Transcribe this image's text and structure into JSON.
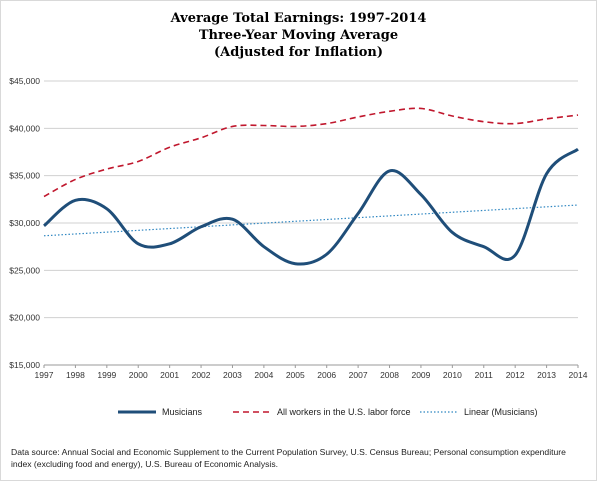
{
  "chart_data": {
    "type": "line",
    "title_lines": [
      "Average Total Earnings: 1997-2014",
      "Three-Year Moving Average",
      "(Adjusted for Inflation)"
    ],
    "x": [
      "1997",
      "1998",
      "1999",
      "2000",
      "2001",
      "2002",
      "2003",
      "2004",
      "2005",
      "2006",
      "2007",
      "2008",
      "2009",
      "2010",
      "2011",
      "2012",
      "2013",
      "2014"
    ],
    "ylim": [
      15000,
      45000
    ],
    "yticks": [
      15000,
      20000,
      25000,
      30000,
      35000,
      40000,
      45000
    ],
    "ytick_labels": [
      "$15,000",
      "$20,000",
      "$25,000",
      "$30,000",
      "$35,000",
      "$40,000",
      "$45,000"
    ],
    "grid": "horizontal",
    "legend_position": "bottom",
    "series": [
      {
        "name": "Musicians",
        "style": "solid",
        "color": "#1f4e79",
        "values": [
          29700,
          32400,
          31500,
          27800,
          27800,
          29600,
          30400,
          27500,
          25700,
          26700,
          31000,
          35500,
          33000,
          29000,
          27500,
          26600,
          35200,
          37800
        ]
      },
      {
        "name": "All workers in the U.S. labor force",
        "style": "dashed",
        "color": "#c0172d",
        "values": [
          32800,
          34600,
          35700,
          36500,
          38000,
          39000,
          40200,
          40300,
          40200,
          40500,
          41200,
          41800,
          42100,
          41300,
          40700,
          40500,
          41000,
          41400
        ]
      },
      {
        "name": "Linear (Musicians)",
        "style": "dotted",
        "color": "#2e86c1",
        "values": [
          28650,
          28840,
          29030,
          29220,
          29410,
          29600,
          29790,
          29980,
          30170,
          30360,
          30550,
          30740,
          30930,
          31120,
          31310,
          31500,
          31690,
          31900
        ]
      }
    ]
  },
  "source_note": "Data source: Annual Social and Economic Supplement to the Current Population Survey, U.S. Census Bureau; Personal consumption expenditure index (excluding food and energy), U.S. Bureau of Economic Analysis."
}
